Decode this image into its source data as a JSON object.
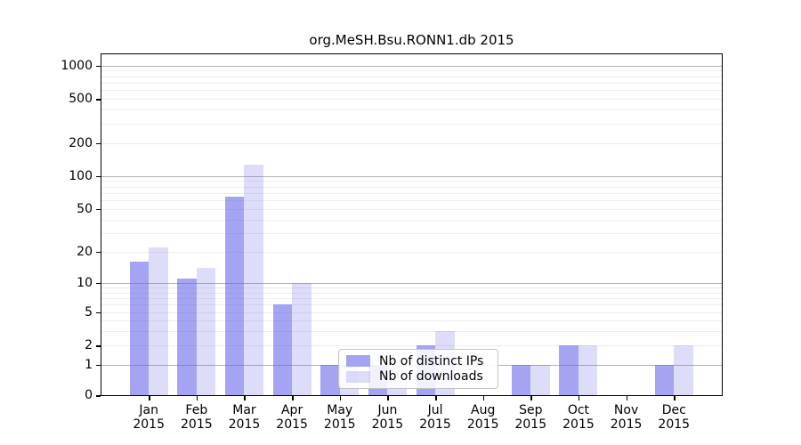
{
  "title": "org.MeSH.Bsu.RONN1.db 2015",
  "chart_data": {
    "type": "bar",
    "title": "org.MeSH.Bsu.RONN1.db 2015",
    "categories": [
      "Jan 2015",
      "Feb 2015",
      "Mar 2015",
      "Apr 2015",
      "May 2015",
      "Jun 2015",
      "Jul 2015",
      "Aug 2015",
      "Sep 2015",
      "Oct 2015",
      "Nov 2015",
      "Dec 2015"
    ],
    "series": [
      {
        "name": "Nb of distinct IPs",
        "color": "rgba(98,98,232,0.58)",
        "values": [
          16,
          11,
          65,
          6,
          1,
          1,
          2,
          0,
          1,
          2,
          0,
          1
        ]
      },
      {
        "name": "Nb of downloads",
        "color": "rgba(98,98,232,0.22)",
        "values": [
          22,
          14,
          128,
          10,
          1,
          1,
          3,
          0,
          1,
          2,
          0,
          2
        ]
      }
    ],
    "xlabel": "",
    "ylabel": "",
    "yscale": "log(1+y)",
    "yticks": [
      0,
      1,
      2,
      5,
      10,
      20,
      50,
      100,
      200,
      500,
      1000
    ],
    "ylim": [
      0,
      1265
    ],
    "grid": true,
    "legend": {
      "position": "bottom-center-inside",
      "items": [
        "Nb of distinct IPs",
        "Nb of downloads"
      ]
    }
  },
  "colors": {
    "major_grid": "#b3b3b3",
    "minor_grid": "#ededed",
    "axis": "#000000",
    "legend_border": "#c3c3c3"
  }
}
